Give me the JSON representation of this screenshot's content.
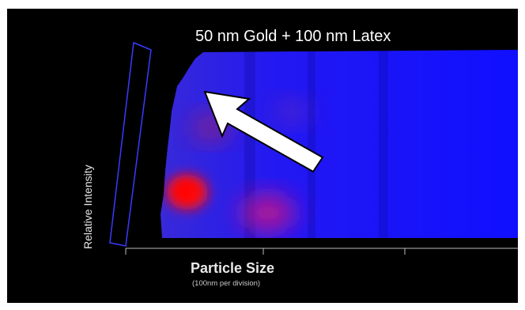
{
  "chart_data": {
    "type": "heatmap",
    "title": "50 nm Gold + 100 nm Latex",
    "xlabel": "Particle Size",
    "xlabel_note": "(100nm per division)",
    "zlabel": "Relative Intensity",
    "annotation": "arrow",
    "colors": {
      "background": "#000000",
      "low": "#1a1aff",
      "high": "#ff0000",
      "frame": "#3a3aff",
      "arrow_fill": "#ffffff",
      "arrow_stroke": "#000000"
    }
  }
}
